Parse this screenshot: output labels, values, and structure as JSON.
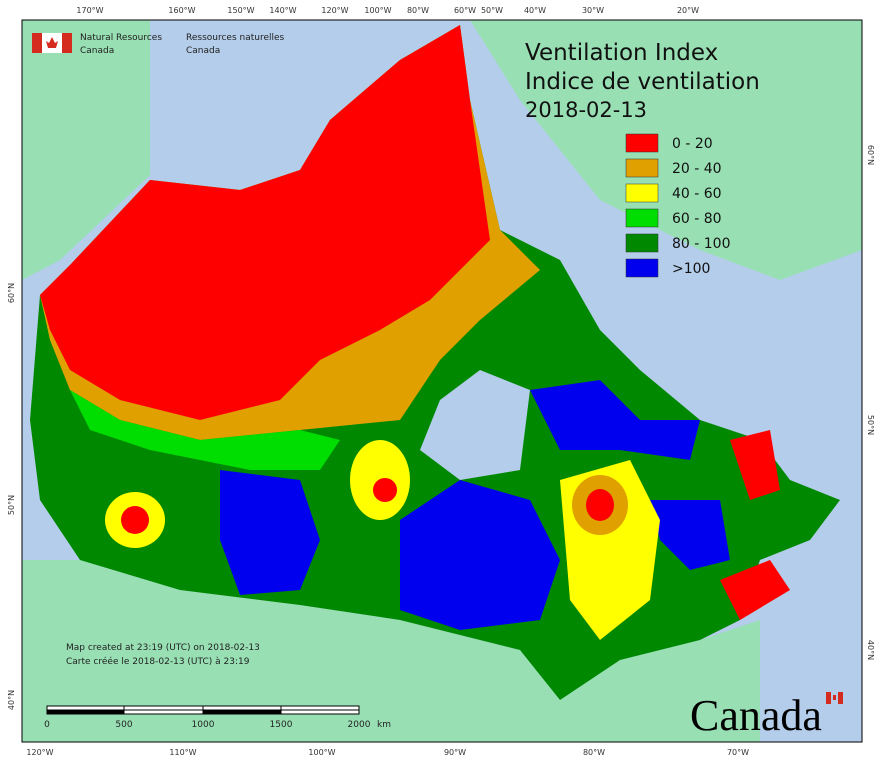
{
  "map": {
    "title": [
      "Ventilation Index",
      "Indice de ventilation"
    ],
    "date": "2018-02-13",
    "agency": {
      "en": [
        "Natural Resources",
        "Canada"
      ],
      "fr": [
        "Ressources naturelles",
        "Canada"
      ]
    },
    "legend": [
      {
        "label": "0 - 20",
        "color": "#ff0000"
      },
      {
        "label": "20 - 40",
        "color": "#e0a000"
      },
      {
        "label": "40 - 60",
        "color": "#ffff00"
      },
      {
        "label": "60 - 80",
        "color": "#00dd00"
      },
      {
        "label": "80 - 100",
        "color": "#008800"
      },
      {
        "label": ">100",
        "color": "#0000ee"
      }
    ],
    "credit": [
      "Map created at 23:19 (UTC) on 2018-02-13",
      "Carte créée le 2018-02-13 (UTC) à 23:19"
    ],
    "scale": {
      "labels": [
        "0",
        "500",
        "1000",
        "1500",
        "2000"
      ],
      "unit": "km"
    },
    "longitude_top": [
      "170°W",
      "160°W",
      "150°W",
      "140°W",
      "120°W",
      "100°W",
      "80°W",
      "60°W",
      "50°W",
      "40°W",
      "30°W",
      "20°W"
    ],
    "longitude_bottom": [
      "120°W",
      "110°W",
      "100°W",
      "90°W",
      "80°W",
      "70°W"
    ],
    "latitude_left": [
      "60°N",
      "50°N",
      "40°N"
    ],
    "latitude_right": [
      "60°N",
      "50°N",
      "40°N"
    ],
    "wordmark": "Canada"
  }
}
